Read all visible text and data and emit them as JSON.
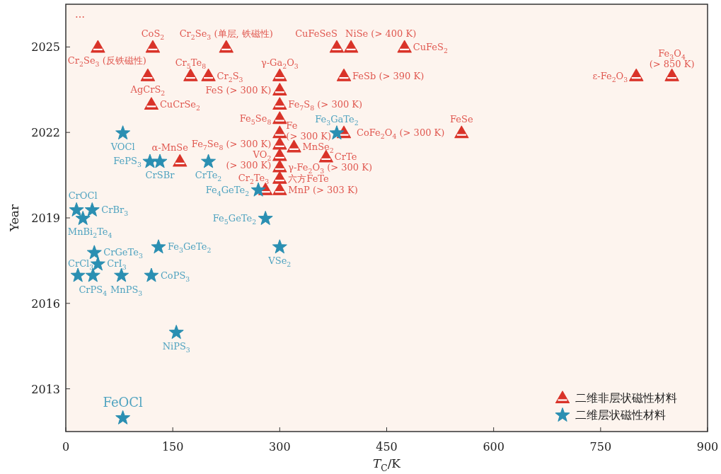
{
  "chart_data": {
    "type": "scatter",
    "xlabel": "*T*$_{C}$/K",
    "ylabel": "Year",
    "xlim": [
      0,
      900
    ],
    "ylim": [
      2011.5,
      2026.5
    ],
    "xticks": [
      0,
      150,
      300,
      450,
      600,
      750,
      900
    ],
    "yticks": [
      2013,
      2016,
      2019,
      2022,
      2025
    ],
    "legend": "bottom right",
    "series": [
      {
        "name": "二维非层状磁性材料",
        "color": "#d93329",
        "marker": "triangle",
        "x": [
          45,
          122,
          225,
          380,
          400,
          475,
          115,
          175,
          200,
          300,
          390,
          800,
          850,
          300,
          120,
          300,
          300,
          300,
          555,
          390,
          160,
          300,
          320,
          300,
          365,
          300,
          280,
          300,
          300
        ],
        "values": [
          2025,
          2025,
          2025,
          2025,
          2025,
          2025,
          2024,
          2024,
          2024,
          2024,
          2024,
          2024,
          2024,
          2023.5,
          2023,
          2023,
          2022.5,
          2022,
          2022,
          2022,
          2021,
          2021.6,
          2021.5,
          2021.2,
          2021.15,
          2020.8,
          2020,
          2020.4,
          2020
        ]
      },
      {
        "name": "二维层状磁性材料",
        "color": "#2a8fb2",
        "marker": "star",
        "x": [
          80,
          118,
          132,
          200,
          270,
          380,
          280,
          15,
          37,
          24,
          130,
          300,
          40,
          45,
          17,
          38,
          78,
          120,
          155,
          80
        ],
        "values": [
          2022,
          2021,
          2021,
          2021,
          2020,
          2022,
          2019,
          2019.3,
          2019.3,
          2019,
          2018,
          2018,
          2017.8,
          2017.4,
          2017,
          2017,
          2017,
          2017,
          2015,
          2012
        ]
      }
    ],
    "annotations": [
      "…",
      {
        "text": "Cr$_{2}$Se$_{3}$ (反铁磁性)",
        "x": 45,
        "y": 2025
      },
      {
        "text": "CoS$_{2}$",
        "x": 122,
        "y": 2025
      },
      {
        "text": "Cr$_{2}$Se$_{3}$ (单层, 铁磁性)",
        "x": 225,
        "y": 2025
      },
      {
        "text": "CuFeSeS",
        "x": 380,
        "y": 2025
      },
      {
        "text": "NiSe (> 400 K)",
        "x": 400,
        "y": 2025
      },
      {
        "text": "CuFeS$_{2}$",
        "x": 475,
        "y": 2025
      },
      {
        "text": "AgCrS$_{2}$",
        "x": 115,
        "y": 2024
      },
      {
        "text": "Cr$_{5}$Te$_{8}$",
        "x": 175,
        "y": 2024
      },
      {
        "text": "Cr$_{2}$S$_{3}$",
        "x": 200,
        "y": 2024
      },
      {
        "text": "γ-Ga$_{2}$O$_{3}$",
        "x": 300,
        "y": 2024
      },
      {
        "text": "FeSb (> 390 K)",
        "x": 390,
        "y": 2024
      },
      {
        "text": "ε-Fe$_{2}$O$_{3}$",
        "x": 800,
        "y": 2024
      },
      {
        "text": "Fe$_{3}$O$_{4}$ (> 850 K)",
        "x": 850,
        "y": 2024
      },
      {
        "text": "FeS (> 300 K)",
        "x": 300,
        "y": 2023.5
      },
      {
        "text": "CuCrSe$_{2}$",
        "x": 120,
        "y": 2023
      },
      {
        "text": "Fe$_{7}$S$_{8}$ (> 300 K)",
        "x": 300,
        "y": 2023
      },
      {
        "text": "Fe$_{5}$Se$_{8}$",
        "x": 300,
        "y": 2022.5
      },
      {
        "text": "Fe (> 300 K)",
        "x": 300,
        "y": 2022
      },
      {
        "text": "FeSe",
        "x": 555,
        "y": 2022
      },
      {
        "text": "CoFe$_{2}$O$_{4}$ (> 300 K)",
        "x": 390,
        "y": 2022
      },
      {
        "text": "α-MnSe",
        "x": 160,
        "y": 2021
      },
      {
        "text": "Fe$_{7}$Se$_{8}$ (> 300 K)",
        "x": 300,
        "y": 2021.6
      },
      {
        "text": "MnSe$_{2}$",
        "x": 320,
        "y": 2021.5
      },
      {
        "text": "VO$_{2}$ (> 300 K)",
        "x": 300,
        "y": 2021.2
      },
      {
        "text": "CrTe",
        "x": 365,
        "y": 2021.15
      },
      {
        "text": "γ-Fe$_{2}$O$_{3}$ (> 300 K)",
        "x": 300,
        "y": 2020.8
      },
      {
        "text": "Cr$_{2}$Te$_{3}$",
        "x": 280,
        "y": 2020
      },
      {
        "text": "六方FeTe",
        "x": 300,
        "y": 2020.4
      },
      {
        "text": "MnP (> 303 K)",
        "x": 300,
        "y": 2020
      },
      {
        "text": "VOCl",
        "x": 80,
        "y": 2022
      },
      {
        "text": "FePS$_{3}$",
        "x": 118,
        "y": 2021
      },
      {
        "text": "CrSBr",
        "x": 132,
        "y": 2021
      },
      {
        "text": "CrTe$_{2}$",
        "x": 200,
        "y": 2021
      },
      {
        "text": "Fe$_{4}$GeTe$_{2}$",
        "x": 270,
        "y": 2020
      },
      {
        "text": "Fe$_{3}$GaTe$_{2}$",
        "x": 380,
        "y": 2022
      },
      {
        "text": "Fe$_{5}$GeTe$_{2}$",
        "x": 280,
        "y": 2019
      },
      {
        "text": "CrOCl",
        "x": 15,
        "y": 2019.3
      },
      {
        "text": "CrBr$_{3}$",
        "x": 37,
        "y": 2019.3
      },
      {
        "text": "MnBi$_{2}$Te$_{4}$",
        "x": 24,
        "y": 2019
      },
      {
        "text": "Fe$_{3}$GeTe$_{2}$",
        "x": 130,
        "y": 2018
      },
      {
        "text": "VSe$_{2}$",
        "x": 300,
        "y": 2018
      },
      {
        "text": "CrGeTe$_{3}$",
        "x": 40,
        "y": 2017.8
      },
      {
        "text": "CrI$_{3}$",
        "x": 45,
        "y": 2017.4
      },
      {
        "text": "CrCl$_{3}$",
        "x": 17,
        "y": 2017
      },
      {
        "text": "CrPS$_{4}$",
        "x": 38,
        "y": 2017
      },
      {
        "text": "MnPS$_{3}$",
        "x": 78,
        "y": 2017
      },
      {
        "text": "CoPS$_{3}$",
        "x": 120,
        "y": 2017
      },
      {
        "text": "NiPS$_{3}$",
        "x": 155,
        "y": 2015
      },
      {
        "text": "FeOCl",
        "x": 80,
        "y": 2012
      }
    ]
  }
}
